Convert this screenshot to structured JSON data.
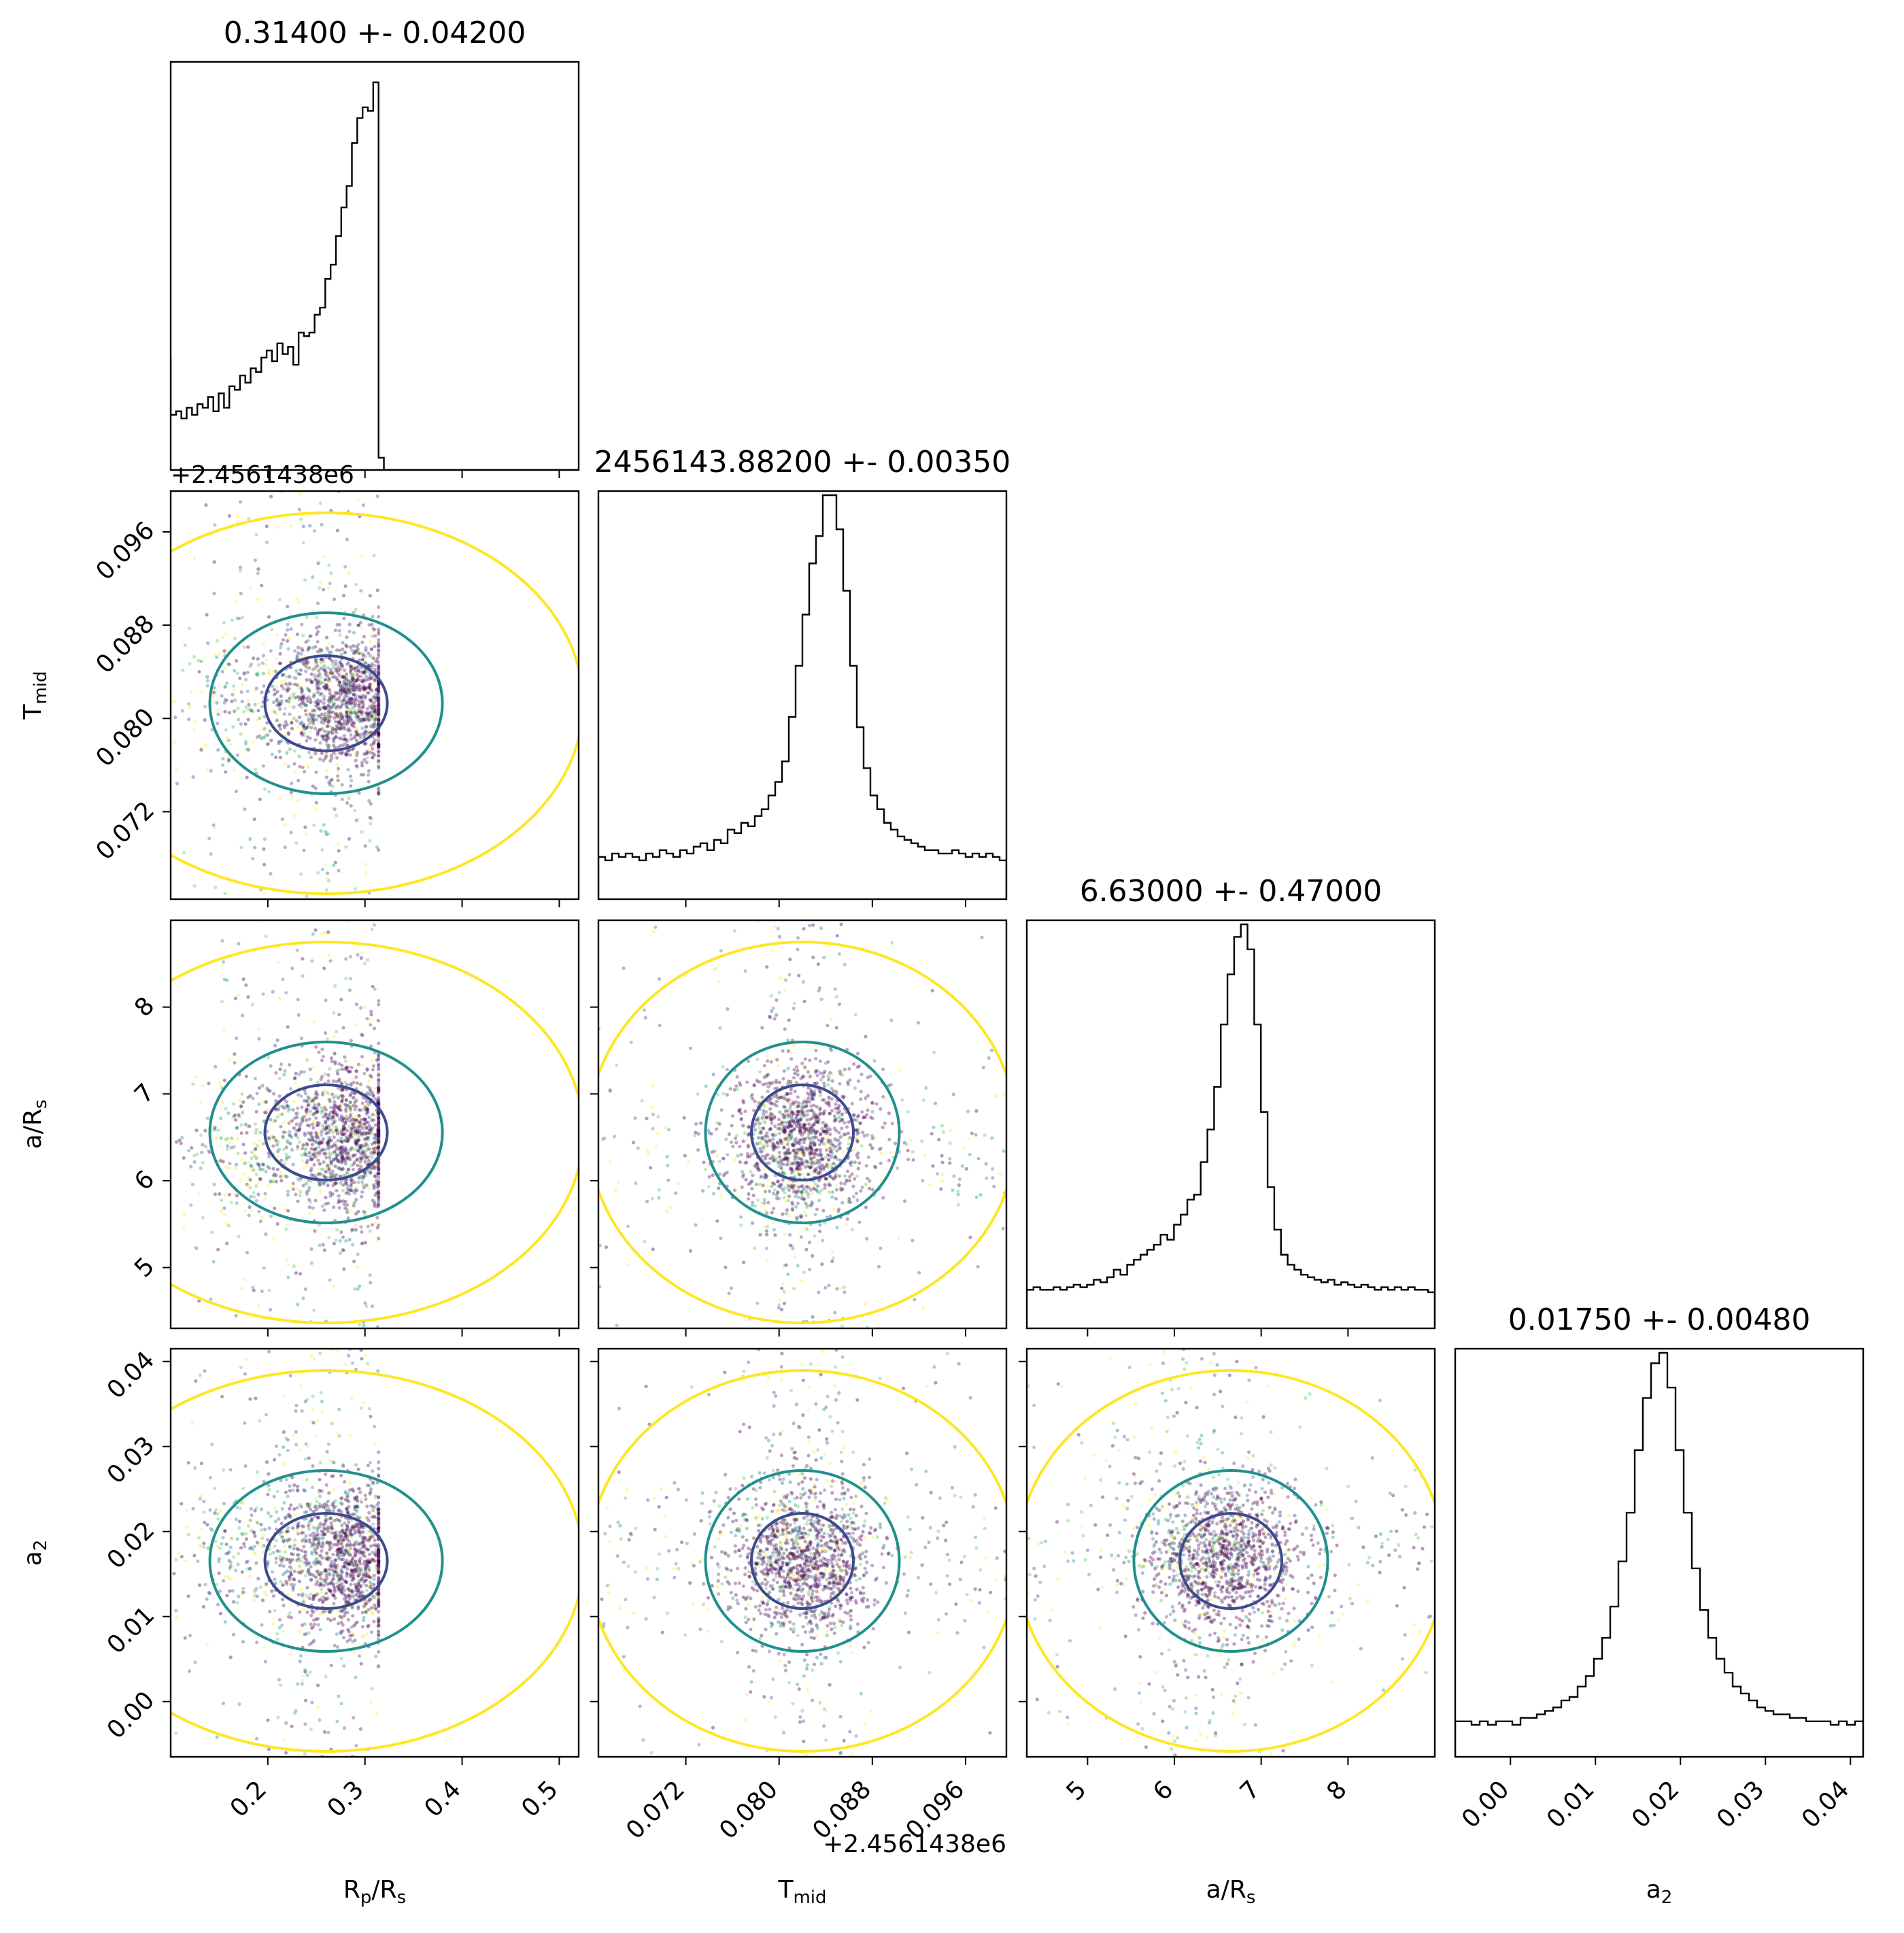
{
  "chart_data": {
    "type": "corner",
    "params": [
      {
        "id": "rp",
        "label": "R",
        "label_sub": "p",
        "label_tail": "/R",
        "label_sub2": "s",
        "range": [
          0.1,
          0.52
        ],
        "ticks": [
          0.2,
          0.3,
          0.4,
          0.5
        ],
        "tick_labels": [
          "0.2",
          "0.3",
          "0.4",
          "0.5"
        ],
        "title": "0.31400 +- 0.04200"
      },
      {
        "id": "tmid",
        "label": "T",
        "label_sub": "mid",
        "label_tail": "",
        "label_sub2": "",
        "range": [
          0.0645,
          0.0995
        ],
        "ticks": [
          0.072,
          0.08,
          0.088,
          0.096
        ],
        "tick_labels": [
          "0.072",
          "0.080",
          "0.088",
          "0.096"
        ],
        "title": "2456143.88200 +- 0.00350",
        "offset": "+2.4561438e6"
      },
      {
        "id": "ars",
        "label": "a/R",
        "label_sub": "s",
        "label_tail": "",
        "label_sub2": "",
        "range": [
          4.3,
          9.0
        ],
        "ticks": [
          5,
          6,
          7,
          8
        ],
        "tick_labels": [
          "5",
          "6",
          "7",
          "8"
        ],
        "title": "6.63000 +- 0.47000"
      },
      {
        "id": "a2",
        "label": "a",
        "label_sub": "2",
        "label_tail": "",
        "label_sub2": "",
        "range": [
          -0.0065,
          0.0415
        ],
        "ticks": [
          0.0,
          0.01,
          0.02,
          0.03,
          0.04
        ],
        "tick_labels": [
          "0.00",
          "0.01",
          "0.02",
          "0.03",
          "0.04"
        ],
        "title": "0.01750 +- 0.00480"
      }
    ],
    "histograms": [
      {
        "param": "rp",
        "bin_edges_range": [
          0.1,
          0.52
        ],
        "counts": [
          12,
          13,
          11,
          14,
          12,
          15,
          14,
          17,
          13,
          18,
          14,
          20,
          19,
          23,
          21,
          25,
          24,
          28,
          30,
          27,
          32,
          29,
          31,
          26,
          35,
          34,
          35,
          40,
          42,
          50,
          54,
          62,
          70,
          76,
          88,
          95,
          98,
          97,
          105,
          0
        ]
      },
      {
        "param": "tmid",
        "counts": [
          4,
          3,
          5,
          4,
          5,
          4,
          3,
          5,
          4,
          6,
          5,
          4,
          6,
          5,
          7,
          8,
          6,
          9,
          8,
          12,
          11,
          14,
          13,
          16,
          18,
          22,
          26,
          32,
          45,
          60,
          75,
          90,
          98,
          110,
          110,
          100,
          82,
          60,
          42,
          30,
          22,
          18,
          14,
          12,
          10,
          9,
          8,
          7,
          6,
          6,
          5,
          5,
          6,
          5,
          4,
          5,
          4,
          5,
          4,
          3
        ]
      },
      {
        "param": "ars",
        "counts": [
          4,
          5,
          4,
          4,
          5,
          4,
          5,
          6,
          5,
          6,
          8,
          7,
          9,
          12,
          10,
          14,
          16,
          18,
          20,
          22,
          26,
          24,
          30,
          34,
          40,
          42,
          55,
          68,
          85,
          110,
          130,
          145,
          150,
          140,
          110,
          75,
          45,
          28,
          18,
          14,
          12,
          10,
          9,
          8,
          7,
          8,
          6,
          7,
          6,
          5,
          6,
          5,
          4,
          5,
          4,
          5,
          4,
          5,
          4,
          4,
          3
        ]
      },
      {
        "param": "a2",
        "counts": [
          2,
          2,
          1,
          2,
          1,
          2,
          2,
          1,
          3,
          3,
          4,
          5,
          6,
          8,
          9,
          12,
          15,
          20,
          26,
          35,
          48,
          62,
          80,
          95,
          105,
          108,
          98,
          80,
          62,
          46,
          34,
          26,
          20,
          16,
          12,
          10,
          8,
          6,
          5,
          4,
          4,
          3,
          3,
          2,
          2,
          2,
          1,
          2,
          1,
          2
        ]
      }
    ],
    "contours": [
      {
        "row": "tmid",
        "col": "rp",
        "levels": [
          "inner",
          "middle",
          "outer"
        ]
      },
      {
        "row": "ars",
        "col": "rp",
        "levels": [
          "inner",
          "middle",
          "outer"
        ]
      },
      {
        "row": "ars",
        "col": "tmid",
        "levels": [
          "inner",
          "middle",
          "outer"
        ]
      },
      {
        "row": "a2",
        "col": "rp",
        "levels": [
          "inner",
          "middle",
          "outer"
        ]
      },
      {
        "row": "a2",
        "col": "tmid",
        "levels": [
          "inner",
          "middle",
          "outer"
        ]
      },
      {
        "row": "a2",
        "col": "ars",
        "levels": [
          "inner",
          "middle",
          "outer"
        ]
      }
    ],
    "colors": {
      "inner": "#3b4b8c",
      "middle": "#21908d",
      "outer": "#fde725",
      "points": [
        "#440154",
        "#3b528b",
        "#21918c",
        "#5ec962",
        "#fde725"
      ],
      "hist": "#000000"
    }
  }
}
